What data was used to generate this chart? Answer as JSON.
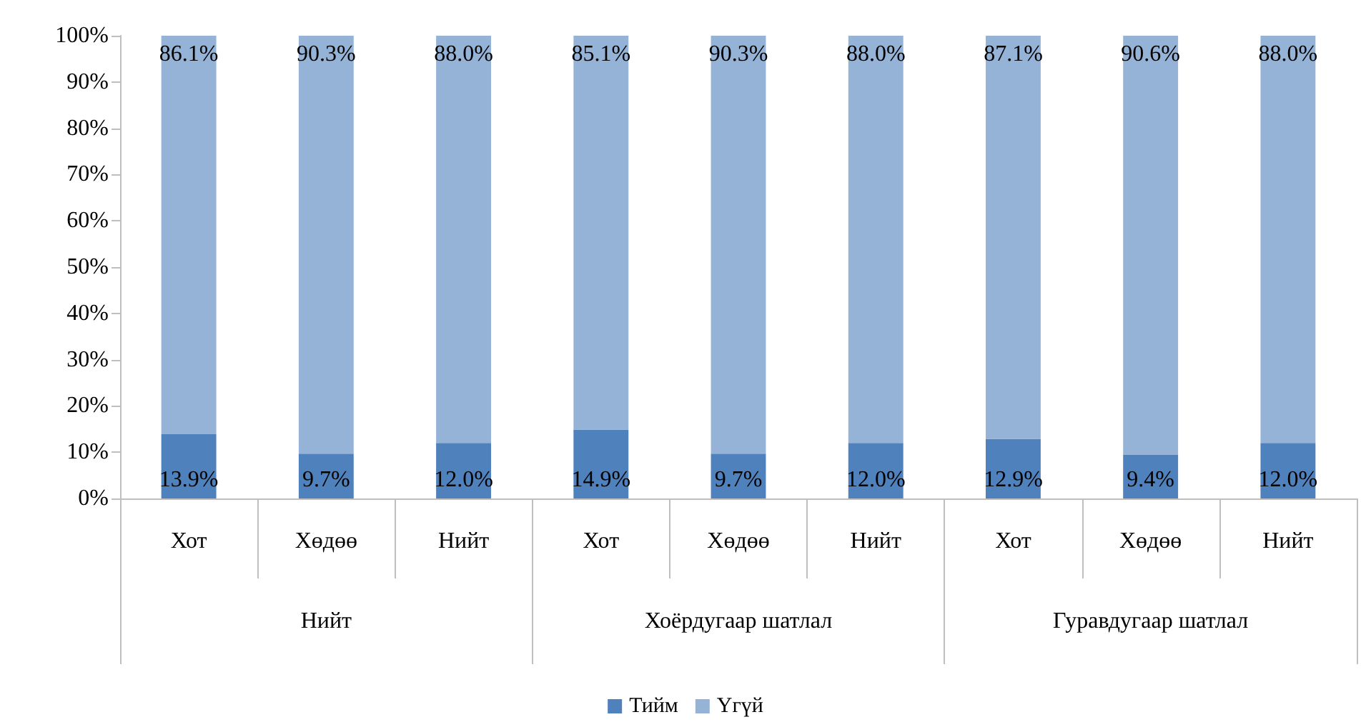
{
  "chart_data": {
    "type": "bar",
    "stacked": true,
    "categories": [
      "Хот",
      "Хөдөө",
      "Нийт",
      "Хот",
      "Хөдөө",
      "Нийт",
      "Хот",
      "Хөдөө",
      "Нийт"
    ],
    "annotations": [
      "Нийт",
      "Хоёрдугаар шатлал",
      "Гуравдугаар шатлал"
    ],
    "series": [
      {
        "name": "Тийм",
        "color": "#4f81bd",
        "values": [
          13.9,
          9.7,
          12.0,
          14.9,
          9.7,
          12.0,
          12.9,
          9.4,
          12.0
        ],
        "value_labels": [
          "13.9%",
          "9.7%",
          "12.0%",
          "14.9%",
          "9.7%",
          "12.0%",
          "12.9%",
          "9.4%",
          "12.0%"
        ]
      },
      {
        "name": "Үгүй",
        "color": "#95b3d7",
        "values": [
          86.1,
          90.3,
          88.0,
          85.1,
          90.3,
          88.0,
          87.1,
          90.6,
          88.0
        ],
        "value_labels": [
          "86.1%",
          "90.3%",
          "88.0%",
          "85.1%",
          "90.3%",
          "88.0%",
          "87.1%",
          "90.6%",
          "88.0%"
        ]
      }
    ],
    "ylim": [
      0,
      100
    ],
    "yticks": [
      {
        "value": 0,
        "label": "0%"
      },
      {
        "value": 10,
        "label": "10%"
      },
      {
        "value": 20,
        "label": "20%"
      },
      {
        "value": 30,
        "label": "30%"
      },
      {
        "value": 40,
        "label": "40%"
      },
      {
        "value": 50,
        "label": "50%"
      },
      {
        "value": 60,
        "label": "60%"
      },
      {
        "value": 70,
        "label": "70%"
      },
      {
        "value": 80,
        "label": "80%"
      },
      {
        "value": 90,
        "label": "90%"
      },
      {
        "value": 100,
        "label": "100%"
      }
    ],
    "grid": false,
    "legend": "bottom"
  }
}
